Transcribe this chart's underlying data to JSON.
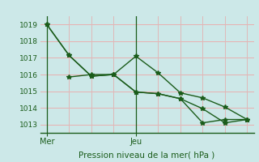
{
  "xlabel": "Pression niveau de la mer( hPa )",
  "bg_color": "#cce8e8",
  "grid_color_h": "#e8b0b0",
  "grid_color_v": "#e0b8b8",
  "line_color": "#1a5c1a",
  "ylim": [
    1012.5,
    1019.5
  ],
  "yticks": [
    1013,
    1014,
    1015,
    1016,
    1017,
    1018,
    1019
  ],
  "xlim": [
    -0.3,
    9.3
  ],
  "n_vgrid": 10,
  "xtick_positions": [
    0,
    4
  ],
  "xtick_labels": [
    "Mer",
    "Jeu"
  ],
  "vline_positions": [
    0,
    4
  ],
  "series1_x": [
    0,
    1,
    2,
    3,
    4,
    5,
    6,
    7,
    8,
    9
  ],
  "series1_y": [
    1019.0,
    1017.15,
    1015.9,
    1016.0,
    1017.1,
    1016.1,
    1014.9,
    1014.6,
    1014.05,
    1013.3
  ],
  "series2_x": [
    1,
    2,
    3,
    4,
    5,
    6,
    7,
    8,
    9
  ],
  "series2_y": [
    1015.85,
    1016.0,
    1016.0,
    1014.95,
    1014.85,
    1014.55,
    1013.95,
    1013.1,
    1013.3
  ],
  "series3_x": [
    0,
    1,
    2,
    3,
    4,
    5,
    6,
    7,
    8,
    9
  ],
  "series3_y": [
    1019.0,
    1017.15,
    1015.9,
    1016.0,
    1014.95,
    1014.85,
    1014.55,
    1013.1,
    1013.3,
    1013.3
  ],
  "marker": "*",
  "markersize": 4,
  "linewidth": 1.0
}
